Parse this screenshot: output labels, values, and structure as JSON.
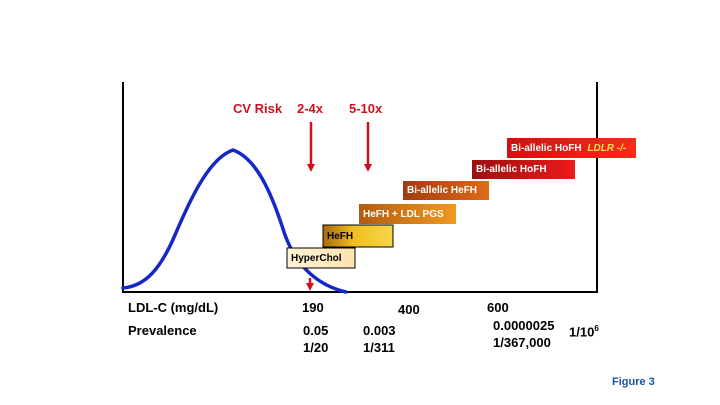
{
  "labels": {
    "cv_risk": "CV Risk",
    "risk_1": "2-4x",
    "risk_2": "5-10x",
    "x_axis": "LDL-C (mg/dL)",
    "prevalence": "Prevalence",
    "tick_190": "190",
    "tick_400": "400",
    "tick_600": "600",
    "prev_1a": "0.05",
    "prev_1b": "1/20",
    "prev_2a": "0.003",
    "prev_2b": "1/311",
    "prev_3a": "0.0000025",
    "prev_3b": "1/367,000",
    "prev_4_base": "1/10",
    "prev_4_exp": "6",
    "figure": "Figure 3"
  },
  "boxes": {
    "hyperchol": "HyperChol",
    "hefh": "HeFH",
    "hefh_pgs": "HeFH + LDL PGS",
    "biallelic_hefh": "Bi-allelic HeFH",
    "biallelic_hofh": "Bi-allelic HoFH",
    "biallelic_hofh_ldlr_prefix": "Bi-allelic HoFH ",
    "biallelic_hofh_ldlr_suffix": "LDLR -/-"
  },
  "colors": {
    "curve": "#1428c8",
    "arrow": "#d0111b",
    "figure_label": "#1f4fa8"
  }
}
